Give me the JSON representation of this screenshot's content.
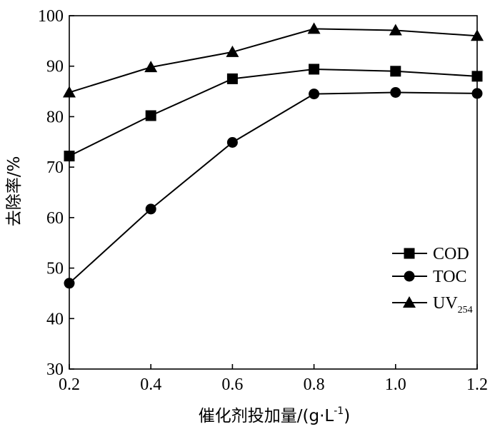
{
  "chart_data": {
    "type": "line",
    "xlabel": "催化剂投加量/(g·L",
    "xlabel_sup": "-1",
    "xlabel_end": ")",
    "ylabel": "去除率/%",
    "x": [
      0.2,
      0.4,
      0.6,
      0.8,
      1.0,
      1.2
    ],
    "x_tick_labels": [
      "0.2",
      "0.4",
      "0.6",
      "0.8",
      "1.0",
      "1.2"
    ],
    "xlim": [
      0.2,
      1.2
    ],
    "ylim": [
      30,
      100
    ],
    "y_ticks": [
      30,
      40,
      50,
      60,
      70,
      80,
      90,
      100
    ],
    "y_tick_labels": [
      "30",
      "40",
      "50",
      "60",
      "70",
      "80",
      "90",
      "100"
    ],
    "grid": false,
    "legend_position": "bottom-right",
    "series": [
      {
        "name": "COD",
        "name_main": "COD",
        "name_sub": "",
        "marker": "square",
        "values": [
          72.2,
          80.2,
          87.5,
          89.4,
          89.0,
          88.0
        ]
      },
      {
        "name": "TOC",
        "name_main": "TOC",
        "name_sub": "",
        "marker": "circle",
        "values": [
          47.0,
          61.7,
          74.9,
          84.5,
          84.8,
          84.6
        ]
      },
      {
        "name": "UV254",
        "name_main": "UV",
        "name_sub": "254",
        "marker": "triangle",
        "values": [
          84.8,
          89.8,
          92.8,
          97.4,
          97.1,
          96.0
        ]
      }
    ]
  }
}
